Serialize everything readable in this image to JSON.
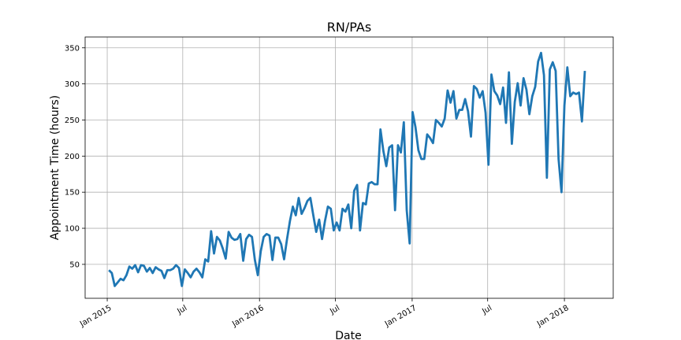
{
  "chart_data": {
    "type": "line",
    "title": "RN/PAs",
    "xlabel": "Date",
    "ylabel": "Appointment Time (hours)",
    "x": [
      "2015-01-05",
      "2015-01-12",
      "2015-01-19",
      "2015-01-26",
      "2015-02-02",
      "2015-02-09",
      "2015-02-16",
      "2015-02-23",
      "2015-03-02",
      "2015-03-09",
      "2015-03-16",
      "2015-03-23",
      "2015-03-30",
      "2015-04-06",
      "2015-04-13",
      "2015-04-20",
      "2015-04-27",
      "2015-05-04",
      "2015-05-11",
      "2015-05-18",
      "2015-05-25",
      "2015-06-01",
      "2015-06-08",
      "2015-06-15",
      "2015-06-22",
      "2015-06-29",
      "2015-07-06",
      "2015-07-13",
      "2015-07-20",
      "2015-07-27",
      "2015-08-03",
      "2015-08-10",
      "2015-08-17",
      "2015-08-24",
      "2015-08-31",
      "2015-09-07",
      "2015-09-14",
      "2015-09-21",
      "2015-09-28",
      "2015-10-05",
      "2015-10-12",
      "2015-10-19",
      "2015-10-26",
      "2015-11-02",
      "2015-11-09",
      "2015-11-16",
      "2015-11-23",
      "2015-11-30",
      "2015-12-07",
      "2015-12-14",
      "2015-12-21",
      "2015-12-28",
      "2016-01-04",
      "2016-01-11",
      "2016-01-18",
      "2016-01-25",
      "2016-02-01",
      "2016-02-08",
      "2016-02-15",
      "2016-02-22",
      "2016-02-29",
      "2016-03-07",
      "2016-03-14",
      "2016-03-21",
      "2016-03-28",
      "2016-04-04",
      "2016-04-11",
      "2016-04-18",
      "2016-04-25",
      "2016-05-02",
      "2016-05-09",
      "2016-05-16",
      "2016-05-23",
      "2016-05-30",
      "2016-06-06",
      "2016-06-13",
      "2016-06-20",
      "2016-06-27",
      "2016-07-04",
      "2016-07-11",
      "2016-07-18",
      "2016-07-25",
      "2016-08-01",
      "2016-08-08",
      "2016-08-15",
      "2016-08-22",
      "2016-08-29",
      "2016-09-05",
      "2016-09-12",
      "2016-09-19",
      "2016-09-26",
      "2016-10-03",
      "2016-10-10",
      "2016-10-17",
      "2016-10-24",
      "2016-10-31",
      "2016-11-07",
      "2016-11-14",
      "2016-11-21",
      "2016-11-28",
      "2016-12-05",
      "2016-12-12",
      "2016-12-19",
      "2016-12-26",
      "2017-01-02",
      "2017-01-09",
      "2017-01-16",
      "2017-01-23",
      "2017-01-30",
      "2017-02-06",
      "2017-02-13",
      "2017-02-20",
      "2017-02-27",
      "2017-03-06",
      "2017-03-13",
      "2017-03-20",
      "2017-03-27",
      "2017-04-03",
      "2017-04-10",
      "2017-04-17",
      "2017-04-24",
      "2017-05-01",
      "2017-05-08",
      "2017-05-15",
      "2017-05-22",
      "2017-05-29",
      "2017-06-05",
      "2017-06-12",
      "2017-06-19",
      "2017-06-26",
      "2017-07-03",
      "2017-07-10",
      "2017-07-17",
      "2017-07-24",
      "2017-07-31",
      "2017-08-07",
      "2017-08-14",
      "2017-08-21",
      "2017-08-28",
      "2017-09-04",
      "2017-09-11",
      "2017-09-18",
      "2017-09-25",
      "2017-10-02",
      "2017-10-09",
      "2017-10-16",
      "2017-10-23",
      "2017-10-30",
      "2017-11-06",
      "2017-11-13",
      "2017-11-20",
      "2017-11-27",
      "2017-12-04",
      "2017-12-11",
      "2017-12-18",
      "2017-12-25",
      "2018-01-01",
      "2018-01-08",
      "2018-01-15",
      "2018-01-22",
      "2018-01-29",
      "2018-02-05",
      "2018-02-12",
      "2018-02-19"
    ],
    "series": [
      {
        "color": "#1f77b4",
        "values": [
          42,
          38,
          20,
          25,
          30,
          28,
          35,
          47,
          44,
          49,
          39,
          49,
          48,
          40,
          45,
          38,
          46,
          43,
          41,
          31,
          42,
          42,
          44,
          49,
          45,
          20,
          43,
          38,
          32,
          40,
          44,
          39,
          32,
          57,
          54,
          96,
          65,
          88,
          83,
          72,
          58,
          95,
          87,
          84,
          85,
          92,
          55,
          85,
          91,
          88,
          56,
          35,
          68,
          88,
          92,
          90,
          56,
          87,
          87,
          78,
          57,
          85,
          110,
          130,
          118,
          142,
          120,
          128,
          138,
          142,
          118,
          95,
          112,
          85,
          110,
          130,
          127,
          97,
          108,
          97,
          127,
          123,
          133,
          100,
          152,
          160,
          97,
          135,
          133,
          162,
          164,
          161,
          161,
          237,
          207,
          186,
          212,
          215,
          125,
          215,
          205,
          247,
          125,
          79,
          261,
          240,
          208,
          196,
          196,
          230,
          225,
          218,
          250,
          246,
          241,
          252,
          291,
          274,
          290,
          252,
          264,
          264,
          279,
          262,
          227,
          297,
          293,
          281,
          290,
          260,
          188,
          313,
          290,
          284,
          272,
          295,
          246,
          316,
          217,
          275,
          301,
          270,
          308,
          292,
          258,
          283,
          296,
          331,
          343,
          312,
          170,
          320,
          330,
          318,
          196,
          150,
          270,
          323,
          283,
          288,
          286,
          288,
          248,
          318
        ]
      }
    ],
    "xlim": [
      "2014-11-09",
      "2018-04-28"
    ],
    "xticks": [
      {
        "value": "2015-01-01",
        "label": "Jan 2015"
      },
      {
        "value": "2015-07-01",
        "label": "Jul"
      },
      {
        "value": "2016-01-01",
        "label": "Jan 2016"
      },
      {
        "value": "2016-07-01",
        "label": "Jul"
      },
      {
        "value": "2017-01-01",
        "label": "Jan 2017"
      },
      {
        "value": "2017-07-01",
        "label": "Jul"
      },
      {
        "value": "2018-01-01",
        "label": "Jan 2018"
      }
    ],
    "ylim": [
      3,
      365
    ],
    "yticks": [
      50,
      100,
      150,
      200,
      250,
      300,
      350
    ],
    "grid": true
  }
}
